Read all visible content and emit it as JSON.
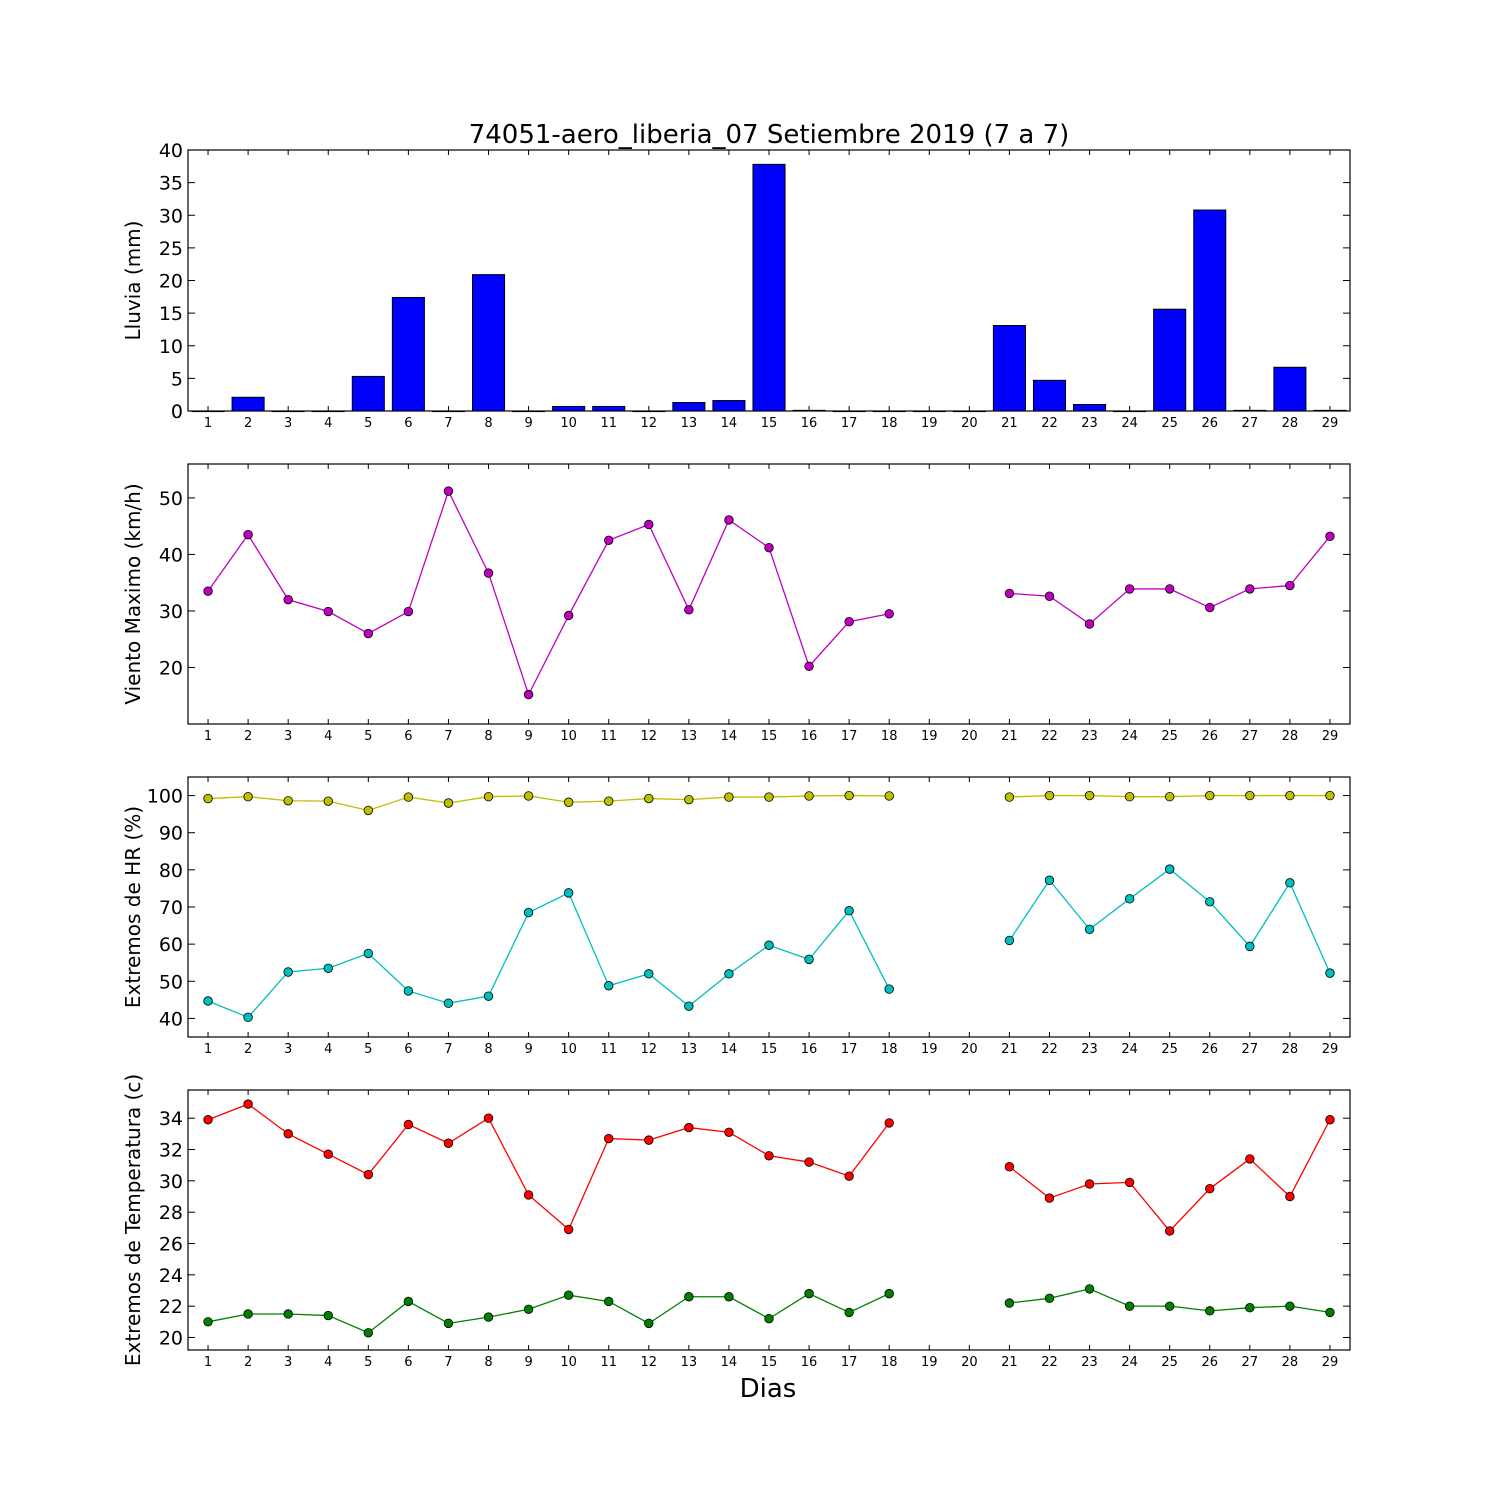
{
  "title": "74051-aero_liberia_07 Setiembre 2019  (7 a 7)",
  "xlabel": "Dias",
  "chart_data": [
    {
      "type": "bar",
      "ylabel": "Lluvia (mm)",
      "ylim": [
        0,
        40
      ],
      "yticks": [
        0,
        5,
        10,
        15,
        20,
        25,
        30,
        35,
        40
      ],
      "categories": [
        1,
        2,
        3,
        4,
        5,
        6,
        7,
        8,
        9,
        10,
        11,
        12,
        13,
        14,
        15,
        16,
        17,
        18,
        19,
        20,
        21,
        22,
        23,
        24,
        25,
        26,
        27,
        28,
        29
      ],
      "series": [
        {
          "color": "#0000ff",
          "values": [
            0,
            2.1,
            0,
            0,
            5.3,
            17.4,
            0,
            20.9,
            0,
            0.7,
            0.7,
            0,
            1.3,
            1.6,
            37.8,
            0.1,
            0,
            0,
            0,
            0,
            13.1,
            4.7,
            1.0,
            0,
            15.6,
            30.8,
            0.1,
            6.7,
            0.1
          ]
        }
      ]
    },
    {
      "type": "line",
      "ylabel": "Viento Maximo (km/h)",
      "ylim": [
        10,
        56
      ],
      "yticks": [
        20,
        30,
        40,
        50
      ],
      "x": [
        1,
        2,
        3,
        4,
        5,
        6,
        7,
        8,
        9,
        10,
        11,
        12,
        13,
        14,
        15,
        16,
        17,
        18,
        19,
        20,
        21,
        22,
        23,
        24,
        25,
        26,
        27,
        28,
        29
      ],
      "series": [
        {
          "color": "#bf00bf",
          "values": [
            33.5,
            43.5,
            32.0,
            29.9,
            26.0,
            29.9,
            51.2,
            36.7,
            15.2,
            29.2,
            42.5,
            45.3,
            30.2,
            46.1,
            41.2,
            20.2,
            28.1,
            29.5,
            null,
            null,
            33.1,
            32.6,
            27.7,
            33.9,
            33.9,
            30.6,
            33.9,
            34.5,
            43.2
          ]
        }
      ]
    },
    {
      "type": "line",
      "ylabel": "Extremos de HR (%)",
      "ylim": [
        35,
        105
      ],
      "yticks": [
        40,
        50,
        60,
        70,
        80,
        90,
        100
      ],
      "x": [
        1,
        2,
        3,
        4,
        5,
        6,
        7,
        8,
        9,
        10,
        11,
        12,
        13,
        14,
        15,
        16,
        17,
        18,
        19,
        20,
        21,
        22,
        23,
        24,
        25,
        26,
        27,
        28,
        29
      ],
      "series": [
        {
          "color": "#bfbf00",
          "values": [
            99.2,
            99.7,
            98.6,
            98.5,
            96.0,
            99.6,
            98.0,
            99.7,
            99.9,
            98.2,
            98.5,
            99.2,
            98.9,
            99.6,
            99.6,
            99.9,
            100,
            99.9,
            null,
            null,
            99.6,
            100,
            100,
            99.7,
            99.7,
            100,
            100,
            100,
            100
          ]
        },
        {
          "color": "#00bfbf",
          "values": [
            44.7,
            40.3,
            52.5,
            53.5,
            57.5,
            47.4,
            44.1,
            46.0,
            68.5,
            73.8,
            48.8,
            52.0,
            43.3,
            52.0,
            59.7,
            55.9,
            69.0,
            47.9,
            null,
            null,
            61.0,
            77.2,
            64.0,
            72.2,
            80.2,
            71.4,
            59.4,
            76.5,
            52.2
          ]
        }
      ]
    },
    {
      "type": "line",
      "ylabel": "Extremos de Temperatura (c)",
      "ylim": [
        19.2,
        35.8
      ],
      "yticks": [
        20,
        22,
        24,
        26,
        28,
        30,
        32,
        34
      ],
      "x": [
        1,
        2,
        3,
        4,
        5,
        6,
        7,
        8,
        9,
        10,
        11,
        12,
        13,
        14,
        15,
        16,
        17,
        18,
        19,
        20,
        21,
        22,
        23,
        24,
        25,
        26,
        27,
        28,
        29
      ],
      "series": [
        {
          "color": "#ff0000",
          "values": [
            33.9,
            34.9,
            33.0,
            31.7,
            30.4,
            33.6,
            32.4,
            34.0,
            29.1,
            26.9,
            32.7,
            32.6,
            33.4,
            33.1,
            31.6,
            31.2,
            30.3,
            33.7,
            null,
            null,
            30.9,
            28.9,
            29.8,
            29.9,
            26.8,
            29.5,
            31.4,
            29.0,
            33.9
          ]
        },
        {
          "color": "#008000",
          "values": [
            21.0,
            21.5,
            21.5,
            21.4,
            20.3,
            22.3,
            20.9,
            21.3,
            21.8,
            22.7,
            22.3,
            20.9,
            22.6,
            22.6,
            21.2,
            22.8,
            21.6,
            22.8,
            null,
            null,
            22.2,
            22.5,
            23.1,
            22.0,
            22.0,
            21.7,
            21.9,
            22.0,
            21.6
          ]
        }
      ]
    }
  ]
}
